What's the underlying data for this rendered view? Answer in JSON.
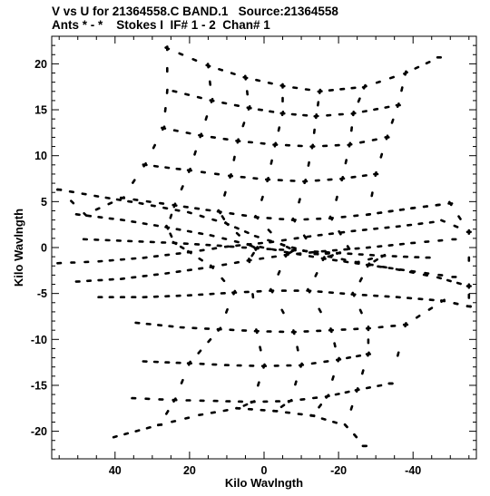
{
  "header": {
    "title_line1": "V vs U for 21364558.C BAND.1   Source:21364558",
    "title_line2": "Ants * - *    Stokes I  IF# 1 - 2  Chan# 1"
  },
  "chart_data": {
    "type": "scatter",
    "title": "V vs U for 21364558.C BAND.1   Source:21364558",
    "subtitle": "Ants * - *    Stokes I  IF# 1 - 2  Chan# 1",
    "xlabel": "Kilo Wavlngth",
    "ylabel": "Kilo Wavlngth",
    "xlim": [
      57,
      -57
    ],
    "ylim": [
      -23,
      23
    ],
    "x_axis_reversed": true,
    "x_ticks": [
      40,
      20,
      0,
      -20,
      -40
    ],
    "y_ticks": [
      20,
      15,
      10,
      5,
      0,
      -5,
      -10,
      -15,
      -20
    ],
    "grid": false,
    "legend": "none",
    "point_color": "#000000",
    "uv_tracks": [
      {
        "points": [
          [
            26,
            21.7
          ],
          [
            15,
            19.8
          ],
          [
            5,
            18.5
          ],
          [
            -5,
            17.6
          ],
          [
            -15,
            17
          ],
          [
            -27,
            17.5
          ],
          [
            -38,
            19
          ],
          [
            -47,
            20.7
          ]
        ]
      },
      {
        "points": [
          [
            24,
            17
          ],
          [
            14,
            16
          ],
          [
            4,
            15.2
          ],
          [
            -5,
            14.6
          ],
          [
            -14,
            14.3
          ],
          [
            -24,
            14.6
          ],
          [
            -36,
            15.5
          ]
        ]
      },
      {
        "points": [
          [
            27,
            13
          ],
          [
            17,
            12.2
          ],
          [
            7,
            11.6
          ],
          [
            -3,
            11.2
          ],
          [
            -13,
            11
          ],
          [
            -23,
            11.2
          ],
          [
            -33,
            12
          ]
        ]
      },
      {
        "points": [
          [
            32,
            9
          ],
          [
            20,
            8.4
          ],
          [
            9,
            7.8
          ],
          [
            -1,
            7.4
          ],
          [
            -11,
            7.2
          ],
          [
            -21,
            7.5
          ],
          [
            -30,
            8
          ]
        ]
      },
      {
        "points": [
          [
            38,
            5.4
          ],
          [
            24,
            4.6
          ],
          [
            12,
            3.9
          ],
          [
            2,
            3.3
          ],
          [
            -8,
            3
          ],
          [
            -18,
            3.2
          ],
          [
            -28,
            3.6
          ],
          [
            -40,
            4.3
          ],
          [
            -50,
            4.8
          ]
        ]
      },
      {
        "points": [
          [
            55,
            6.3
          ],
          [
            45,
            5.6
          ],
          [
            33,
            4.8
          ],
          [
            20,
            3.8
          ],
          [
            10,
            2.6
          ],
          [
            2,
            1.2
          ],
          [
            -5,
            0.3
          ],
          [
            -14,
            -0.7
          ],
          [
            -25,
            -1.6
          ],
          [
            -36,
            -2.4
          ],
          [
            -47,
            -3.3
          ],
          [
            -55,
            -4.2
          ]
        ]
      },
      {
        "points": [
          [
            50,
            3.6
          ],
          [
            38,
            3
          ],
          [
            26,
            2.2
          ],
          [
            14,
            1.3
          ],
          [
            4,
            0.3
          ],
          [
            -6,
            -0.5
          ],
          [
            -16,
            -1.2
          ],
          [
            -28,
            -1.9
          ],
          [
            -40,
            -2.6
          ],
          [
            -51,
            -3.2
          ]
        ]
      },
      {
        "points": [
          [
            48,
            0.9
          ],
          [
            36,
            0.7
          ],
          [
            24,
            0.5
          ],
          [
            12,
            0.2
          ],
          [
            2,
            -0.1
          ],
          [
            -8,
            -0.3
          ],
          [
            -20,
            -0.6
          ],
          [
            -32,
            -0.9
          ],
          [
            -44,
            -1.1
          ]
        ]
      },
      {
        "points": [
          [
            55,
            -1.7
          ],
          [
            44,
            -1.5
          ],
          [
            32,
            -1.1
          ],
          [
            20,
            -0.5
          ],
          [
            10,
            0.1
          ],
          [
            -2,
            0.6
          ],
          [
            -12,
            1.2
          ],
          [
            -24,
            1.8
          ],
          [
            -36,
            2.3
          ],
          [
            -48,
            2.9
          ],
          [
            -55,
            1.7
          ]
        ]
      },
      {
        "points": [
          [
            50,
            -3.7
          ],
          [
            38,
            -3.4
          ],
          [
            26,
            -2.8
          ],
          [
            14,
            -2.1
          ],
          [
            4,
            -1.4
          ],
          [
            -6,
            -0.8
          ],
          [
            -16,
            -0.4
          ],
          [
            -28,
            0
          ],
          [
            -40,
            0.5
          ],
          [
            -51,
            0.9
          ]
        ]
      },
      {
        "points": [
          [
            44,
            -5.4
          ],
          [
            32,
            -5.4
          ],
          [
            20,
            -5.2
          ],
          [
            8,
            -4.9
          ],
          [
            -2,
            -4.7
          ],
          [
            -12,
            -4.7
          ],
          [
            -24,
            -5.1
          ],
          [
            -36,
            -5.4
          ],
          [
            -48,
            -5.8
          ],
          [
            -55,
            -6.4
          ]
        ]
      },
      {
        "points": [
          [
            34,
            -8.2
          ],
          [
            22,
            -8.7
          ],
          [
            12,
            -8.9
          ],
          [
            2,
            -9.1
          ],
          [
            -8,
            -9.2
          ],
          [
            -18,
            -9
          ],
          [
            -28,
            -8.8
          ],
          [
            -38,
            -8.4
          ]
        ]
      },
      {
        "points": [
          [
            32,
            -12.4
          ],
          [
            20,
            -12.6
          ],
          [
            10,
            -12.8
          ],
          [
            0,
            -12.9
          ],
          [
            -10,
            -12.8
          ],
          [
            -20,
            -12.2
          ],
          [
            -28,
            -11.6
          ]
        ]
      },
      {
        "points": [
          [
            35,
            -16.4
          ],
          [
            24,
            -16.6
          ],
          [
            13,
            -16.7
          ],
          [
            3,
            -16.8
          ],
          [
            -7,
            -16.7
          ],
          [
            -17,
            -16.2
          ],
          [
            -25,
            -15.5
          ],
          [
            -34,
            -14.8
          ]
        ]
      },
      {
        "points": [
          [
            40,
            -20.6
          ],
          [
            28,
            -19.3
          ],
          [
            17,
            -18.2
          ],
          [
            7,
            -17.5
          ],
          [
            -3,
            -17.8
          ],
          [
            -13,
            -18.3
          ],
          [
            -22,
            -19.4
          ],
          [
            -27,
            -21.6
          ]
        ]
      },
      {
        "points": [
          [
            26,
            21.7
          ],
          [
            26,
            17
          ],
          [
            27,
            13
          ],
          [
            32,
            9
          ],
          [
            38,
            5.4
          ],
          [
            48,
            3.6
          ],
          [
            55,
            6.3
          ]
        ]
      },
      {
        "points": [
          [
            15,
            19.8
          ],
          [
            14,
            16
          ],
          [
            17,
            12.2
          ],
          [
            20,
            8.4
          ],
          [
            24,
            4.6
          ],
          [
            26,
            2.2
          ],
          [
            24,
            0.5
          ],
          [
            20,
            -0.5
          ],
          [
            14,
            -2.1
          ],
          [
            8,
            -4.9
          ],
          [
            12,
            -8.9
          ],
          [
            20,
            -12.6
          ],
          [
            24,
            -16.6
          ],
          [
            28,
            -19.3
          ]
        ]
      },
      {
        "points": [
          [
            5,
            18.5
          ],
          [
            4,
            15.2
          ],
          [
            7,
            11.6
          ],
          [
            9,
            7.8
          ],
          [
            12,
            3.9
          ],
          [
            10,
            2.6
          ],
          [
            4,
            0.3
          ],
          [
            2,
            -0.1
          ],
          [
            4,
            -1.4
          ],
          [
            2,
            -9.1
          ],
          [
            0,
            -12.9
          ],
          [
            3,
            -16.8
          ],
          [
            7,
            -17.5
          ]
        ]
      },
      {
        "points": [
          [
            -5,
            17.6
          ],
          [
            -5,
            14.6
          ],
          [
            -3,
            11.2
          ],
          [
            -1,
            7.4
          ],
          [
            2,
            3.3
          ],
          [
            -5,
            0.3
          ],
          [
            -8,
            -0.3
          ],
          [
            -6,
            -0.8
          ],
          [
            -2,
            -4.7
          ],
          [
            -8,
            -9.2
          ],
          [
            -10,
            -12.8
          ],
          [
            -7,
            -16.7
          ],
          [
            -3,
            -17.8
          ]
        ]
      },
      {
        "points": [
          [
            -15,
            17
          ],
          [
            -14,
            14.3
          ],
          [
            -13,
            11
          ],
          [
            -11,
            7.2
          ],
          [
            -8,
            3
          ],
          [
            -14,
            -0.7
          ],
          [
            -20,
            -0.6
          ],
          [
            -16,
            -1.2
          ],
          [
            -12,
            -4.7
          ],
          [
            -18,
            -9
          ],
          [
            -20,
            -12.2
          ],
          [
            -17,
            -16.2
          ],
          [
            -13,
            -18.3
          ]
        ]
      },
      {
        "points": [
          [
            -27,
            17.5
          ],
          [
            -24,
            14.6
          ],
          [
            -23,
            11.2
          ],
          [
            -21,
            7.5
          ],
          [
            -18,
            3.2
          ],
          [
            -25,
            -1.6
          ],
          [
            -32,
            -0.9
          ],
          [
            -28,
            -1.9
          ],
          [
            -24,
            -5.1
          ],
          [
            -28,
            -8.8
          ],
          [
            -28,
            -11.6
          ],
          [
            -25,
            -15.5
          ],
          [
            -22,
            -19.4
          ],
          [
            -27,
            -21.6
          ]
        ]
      },
      {
        "points": [
          [
            -38,
            19
          ],
          [
            -36,
            15.5
          ],
          [
            -33,
            12
          ],
          [
            -30,
            8
          ],
          [
            -28,
            3.6
          ],
          [
            -40,
            4.3
          ],
          [
            -50,
            4.8
          ],
          [
            -55,
            1.7
          ],
          [
            -55,
            -4.2
          ],
          [
            -55,
            -6.4
          ],
          [
            -48,
            -5.8
          ],
          [
            -38,
            -8.4
          ],
          [
            -34,
            -14.8
          ]
        ]
      }
    ]
  }
}
